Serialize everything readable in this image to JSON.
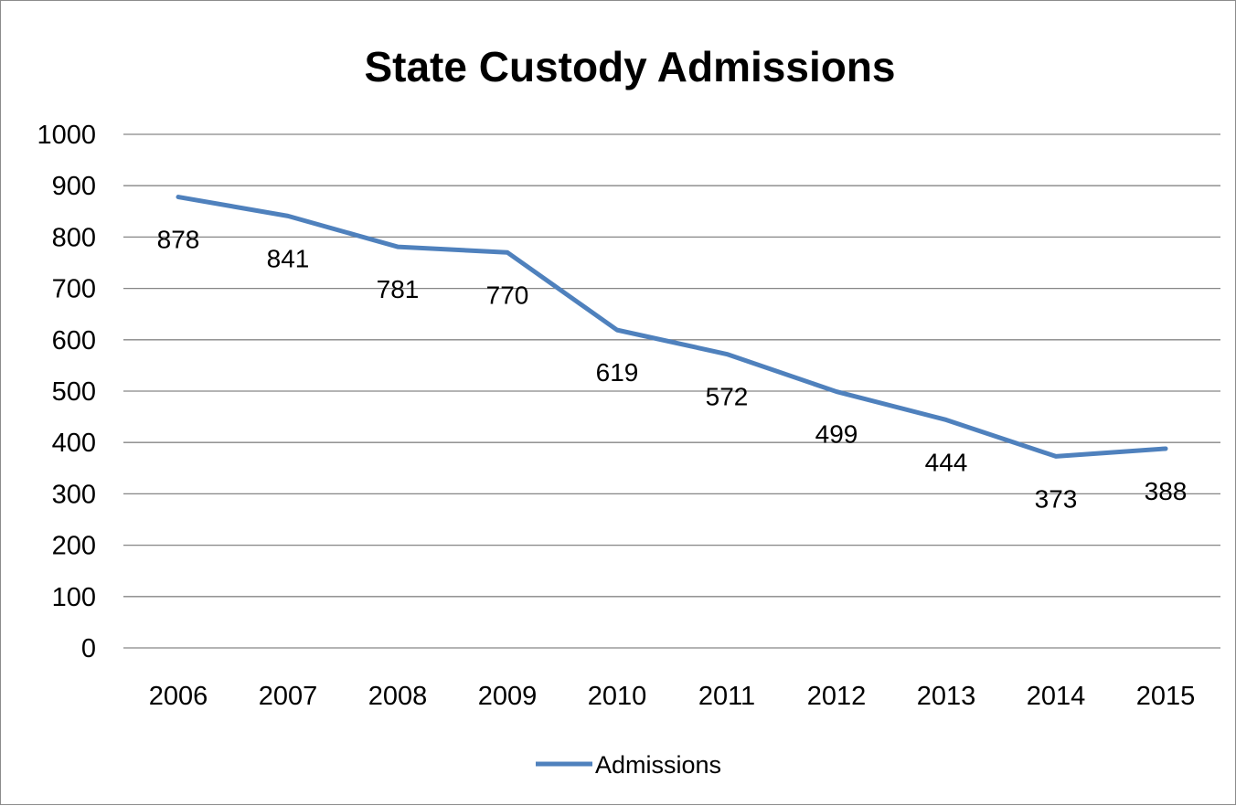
{
  "chart_data": {
    "type": "line",
    "title": "State Custody Admissions",
    "xlabel": "",
    "ylabel": "",
    "categories": [
      "2006",
      "2007",
      "2008",
      "2009",
      "2010",
      "2011",
      "2012",
      "2013",
      "2014",
      "2015"
    ],
    "series": [
      {
        "name": "Admissions",
        "values": [
          878,
          841,
          781,
          770,
          619,
          572,
          499,
          444,
          373,
          388
        ],
        "color": "#4f81bd"
      }
    ],
    "ylim": [
      0,
      1000
    ],
    "yticks": [
      "0",
      "100",
      "200",
      "300",
      "400",
      "500",
      "600",
      "700",
      "800",
      "900",
      "1000"
    ],
    "grid": true,
    "data_labels": true,
    "legend_position": "bottom",
    "colors": {
      "gridline": "#868686",
      "frame": "#8c8c8c"
    }
  }
}
